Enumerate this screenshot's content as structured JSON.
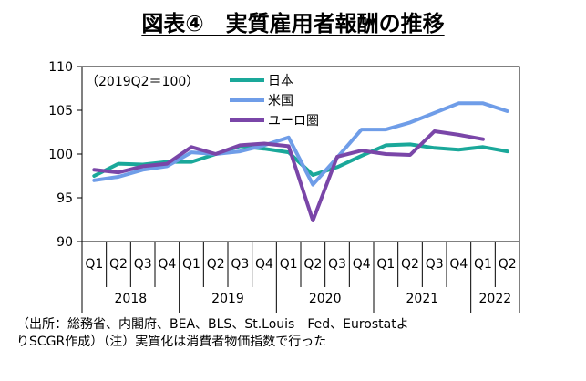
{
  "chart_data": {
    "type": "line",
    "title": "図表④　実質雇用者報酬の推移",
    "subtitle": "（2019Q2＝100）",
    "quarters": [
      "Q1",
      "Q2",
      "Q3",
      "Q4",
      "Q1",
      "Q2",
      "Q3",
      "Q4",
      "Q1",
      "Q2",
      "Q3",
      "Q4",
      "Q1",
      "Q2",
      "Q3",
      "Q4",
      "Q1",
      "Q2"
    ],
    "years": [
      {
        "label": "2018",
        "span": 4
      },
      {
        "label": "2019",
        "span": 4
      },
      {
        "label": "2020",
        "span": 4
      },
      {
        "label": "2021",
        "span": 4
      },
      {
        "label": "2022",
        "span": 2
      }
    ],
    "ylim": [
      90,
      110
    ],
    "yticks": [
      "90",
      "95",
      "100",
      "105",
      "110"
    ],
    "series": [
      {
        "name": "日本",
        "color": "#1aa89a",
        "values": [
          97.5,
          98.9,
          98.8,
          99.1,
          99.1,
          100.0,
          100.9,
          100.6,
          100.2,
          97.6,
          98.5,
          99.8,
          101.0,
          101.1,
          100.7,
          100.5,
          100.8,
          100.3
        ]
      },
      {
        "name": "米国",
        "color": "#6f9de8",
        "values": [
          97.0,
          97.4,
          98.2,
          98.6,
          100.2,
          100.0,
          100.3,
          101.0,
          101.9,
          96.5,
          99.6,
          102.8,
          102.8,
          103.6,
          104.7,
          105.8,
          105.8,
          104.9
        ]
      },
      {
        "name": "ユーロ圏",
        "color": "#7a46a8",
        "values": [
          98.2,
          97.9,
          98.6,
          98.9,
          100.8,
          100.0,
          101.0,
          101.2,
          100.9,
          92.4,
          99.7,
          100.4,
          100.0,
          99.9,
          102.6,
          102.2,
          101.7,
          null
        ]
      }
    ]
  },
  "source_note": "（出所：総務省、内閣府、BEA、BLS、St.Louis　Fed、Eurostatよ\nりSCGR作成）（注）実質化は消費者物価指数で行った"
}
